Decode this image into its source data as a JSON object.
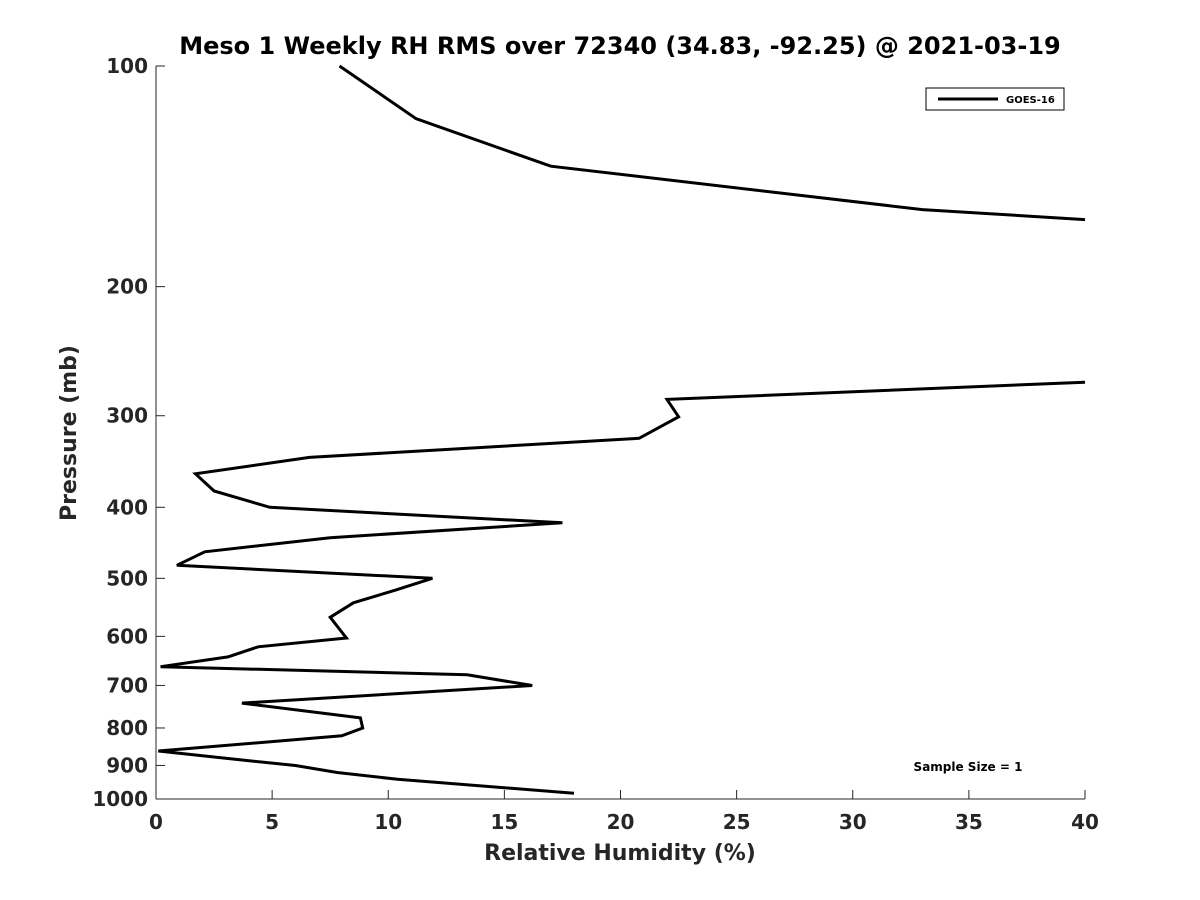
{
  "chart_data": {
    "type": "line",
    "title": "Meso 1 Weekly RH RMS over 72340 (34.83, -92.25) @ 2021-03-19",
    "xlabel": "Relative Humidity (%)",
    "ylabel": "Pressure (mb)",
    "xlim": [
      0,
      40
    ],
    "ylim": [
      100,
      1000
    ],
    "y_scale": "log",
    "y_reversed": true,
    "xticks": [
      0,
      5,
      10,
      15,
      20,
      25,
      30,
      35,
      40
    ],
    "xtick_labels": [
      "0",
      "5",
      "10",
      "15",
      "20",
      "25",
      "30",
      "35",
      "40"
    ],
    "yticks": [
      100,
      200,
      300,
      400,
      500,
      600,
      700,
      800,
      900,
      1000
    ],
    "ytick_labels": [
      "100",
      "200",
      "300",
      "400",
      "500",
      "600",
      "700",
      "800",
      "900",
      "1000"
    ],
    "grid": false,
    "legend_position": "top-right",
    "annotation": "Sample Size = 1",
    "series": [
      {
        "name": "GOES-16",
        "color": "#000000",
        "segments": [
          [
            [
              7.9,
              100
            ],
            [
              11.2,
              118
            ],
            [
              17.0,
              137
            ],
            [
              33.0,
              157
            ],
            [
              40.0,
              162
            ]
          ],
          [
            [
              40.0,
              270
            ],
            [
              22.0,
              285
            ],
            [
              22.5,
              301
            ],
            [
              20.8,
              322
            ],
            [
              6.6,
              342
            ],
            [
              1.7,
              360
            ],
            [
              2.5,
              380
            ],
            [
              4.9,
              400
            ],
            [
              17.5,
              420
            ],
            [
              7.5,
              440
            ],
            [
              2.1,
              460
            ],
            [
              0.9,
              480
            ],
            [
              11.9,
              500
            ],
            [
              10.3,
              519
            ],
            [
              8.5,
              540
            ],
            [
              7.5,
              565
            ],
            [
              8.2,
              603
            ],
            [
              4.4,
              620
            ],
            [
              3.1,
              640
            ],
            [
              0.2,
              660
            ],
            [
              13.4,
              677
            ],
            [
              16.2,
              700
            ],
            [
              3.7,
              740
            ],
            [
              8.8,
              775
            ],
            [
              8.9,
              800
            ],
            [
              8.0,
              820
            ],
            [
              0.1,
              860
            ],
            [
              3.0,
              880
            ],
            [
              6.0,
              900
            ],
            [
              7.8,
              920
            ],
            [
              10.4,
              940
            ],
            [
              18.0,
              982
            ]
          ]
        ]
      }
    ]
  }
}
